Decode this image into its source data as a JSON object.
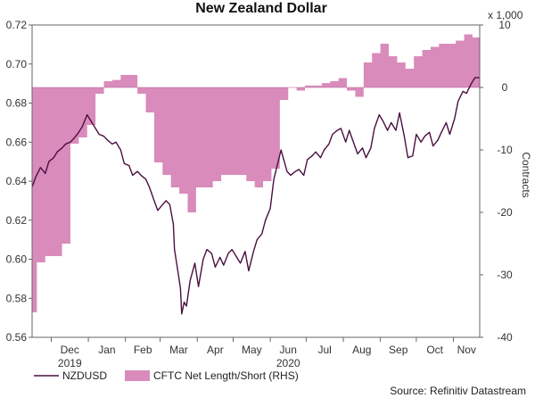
{
  "chart_data": {
    "type": "line",
    "title": "New Zealand Dollar",
    "left_axis": {
      "ticks": [
        "0.56",
        "0.58",
        "0.60",
        "0.62",
        "0.64",
        "0.66",
        "0.68",
        "0.70",
        "0.72"
      ],
      "ylim": [
        0.56,
        0.72
      ]
    },
    "right_axis": {
      "label": "Contracts",
      "unit_note": "x 1,000",
      "ticks": [
        "-40",
        "-30",
        "-20",
        "-10",
        "0",
        "10"
      ],
      "ylim": [
        -40,
        10
      ]
    },
    "x_axis": {
      "month_ticks": [
        "Dec",
        "Jan",
        "Feb",
        "Mar",
        "Apr",
        "May",
        "Jun",
        "Jul",
        "Aug",
        "Sep",
        "Oct",
        "Nov"
      ],
      "year_labels": [
        "2019",
        "2020"
      ],
      "start": "2019-11-15",
      "end": "2020-11-23"
    },
    "series": [
      {
        "name": "NZDUSD",
        "axis": "left",
        "color": "#4a1040",
        "type": "line",
        "points": [
          [
            "2019-11-15",
            0.637
          ],
          [
            "2019-11-18",
            0.642
          ],
          [
            "2019-11-22",
            0.647
          ],
          [
            "2019-11-26",
            0.644
          ],
          [
            "2019-11-29",
            0.65
          ],
          [
            "2019-12-03",
            0.652
          ],
          [
            "2019-12-06",
            0.655
          ],
          [
            "2019-12-10",
            0.657
          ],
          [
            "2019-12-13",
            0.659
          ],
          [
            "2019-12-17",
            0.66
          ],
          [
            "2019-12-20",
            0.662
          ],
          [
            "2019-12-24",
            0.665
          ],
          [
            "2019-12-27",
            0.668
          ],
          [
            "2019-12-31",
            0.674
          ],
          [
            "2020-01-03",
            0.671
          ],
          [
            "2020-01-07",
            0.667
          ],
          [
            "2020-01-10",
            0.664
          ],
          [
            "2020-01-14",
            0.663
          ],
          [
            "2020-01-17",
            0.661
          ],
          [
            "2020-01-21",
            0.659
          ],
          [
            "2020-01-24",
            0.66
          ],
          [
            "2020-01-28",
            0.656
          ],
          [
            "2020-01-31",
            0.649
          ],
          [
            "2020-02-04",
            0.648
          ],
          [
            "2020-02-07",
            0.643
          ],
          [
            "2020-02-11",
            0.645
          ],
          [
            "2020-02-14",
            0.643
          ],
          [
            "2020-02-18",
            0.641
          ],
          [
            "2020-02-21",
            0.637
          ],
          [
            "2020-02-25",
            0.63
          ],
          [
            "2020-02-28",
            0.625
          ],
          [
            "2020-03-03",
            0.628
          ],
          [
            "2020-03-06",
            0.63
          ],
          [
            "2020-03-09",
            0.628
          ],
          [
            "2020-03-12",
            0.618
          ],
          [
            "2020-03-13",
            0.605
          ],
          [
            "2020-03-16",
            0.593
          ],
          [
            "2020-03-18",
            0.585
          ],
          [
            "2020-03-19",
            0.572
          ],
          [
            "2020-03-21",
            0.578
          ],
          [
            "2020-03-23",
            0.576
          ],
          [
            "2020-03-26",
            0.589
          ],
          [
            "2020-03-30",
            0.598
          ],
          [
            "2020-04-02",
            0.586
          ],
          [
            "2020-04-06",
            0.6
          ],
          [
            "2020-04-09",
            0.605
          ],
          [
            "2020-04-13",
            0.603
          ],
          [
            "2020-04-16",
            0.596
          ],
          [
            "2020-04-20",
            0.601
          ],
          [
            "2020-04-23",
            0.597
          ],
          [
            "2020-04-27",
            0.603
          ],
          [
            "2020-04-30",
            0.605
          ],
          [
            "2020-05-04",
            0.601
          ],
          [
            "2020-05-07",
            0.598
          ],
          [
            "2020-05-11",
            0.604
          ],
          [
            "2020-05-14",
            0.594
          ],
          [
            "2020-05-18",
            0.604
          ],
          [
            "2020-05-21",
            0.61
          ],
          [
            "2020-05-25",
            0.613
          ],
          [
            "2020-05-28",
            0.62
          ],
          [
            "2020-06-01",
            0.626
          ],
          [
            "2020-06-04",
            0.641
          ],
          [
            "2020-06-08",
            0.651
          ],
          [
            "2020-06-10",
            0.656
          ],
          [
            "2020-06-15",
            0.645
          ],
          [
            "2020-06-18",
            0.643
          ],
          [
            "2020-06-22",
            0.645
          ],
          [
            "2020-06-25",
            0.646
          ],
          [
            "2020-06-29",
            0.643
          ],
          [
            "2020-07-02",
            0.651
          ],
          [
            "2020-07-06",
            0.653
          ],
          [
            "2020-07-09",
            0.655
          ],
          [
            "2020-07-13",
            0.652
          ],
          [
            "2020-07-16",
            0.656
          ],
          [
            "2020-07-20",
            0.659
          ],
          [
            "2020-07-23",
            0.664
          ],
          [
            "2020-07-27",
            0.666
          ],
          [
            "2020-07-30",
            0.667
          ],
          [
            "2020-08-03",
            0.66
          ],
          [
            "2020-08-06",
            0.666
          ],
          [
            "2020-08-10",
            0.659
          ],
          [
            "2020-08-13",
            0.654
          ],
          [
            "2020-08-17",
            0.657
          ],
          [
            "2020-08-20",
            0.652
          ],
          [
            "2020-08-24",
            0.657
          ],
          [
            "2020-08-27",
            0.667
          ],
          [
            "2020-08-31",
            0.674
          ],
          [
            "2020-09-03",
            0.671
          ],
          [
            "2020-09-07",
            0.666
          ],
          [
            "2020-09-10",
            0.67
          ],
          [
            "2020-09-14",
            0.666
          ],
          [
            "2020-09-17",
            0.675
          ],
          [
            "2020-09-21",
            0.663
          ],
          [
            "2020-09-24",
            0.652
          ],
          [
            "2020-09-28",
            0.653
          ],
          [
            "2020-10-01",
            0.664
          ],
          [
            "2020-10-05",
            0.66
          ],
          [
            "2020-10-08",
            0.663
          ],
          [
            "2020-10-12",
            0.665
          ],
          [
            "2020-10-15",
            0.658
          ],
          [
            "2020-10-19",
            0.661
          ],
          [
            "2020-10-22",
            0.665
          ],
          [
            "2020-10-26",
            0.67
          ],
          [
            "2020-10-29",
            0.664
          ],
          [
            "2020-11-02",
            0.672
          ],
          [
            "2020-11-05",
            0.681
          ],
          [
            "2020-11-09",
            0.686
          ],
          [
            "2020-11-12",
            0.685
          ],
          [
            "2020-11-16",
            0.69
          ],
          [
            "2020-11-19",
            0.693
          ],
          [
            "2020-11-23",
            0.693
          ]
        ]
      },
      {
        "name": "CFTC Net Length/Short (RHS)",
        "axis": "right",
        "color": "#d98bbb",
        "type": "area",
        "points": [
          [
            "2019-11-15",
            -36
          ],
          [
            "2019-11-19",
            -28
          ],
          [
            "2019-11-26",
            -27
          ],
          [
            "2019-12-03",
            -27
          ],
          [
            "2019-12-10",
            -25
          ],
          [
            "2019-12-17",
            -9
          ],
          [
            "2019-12-24",
            -8
          ],
          [
            "2019-12-31",
            -6
          ],
          [
            "2020-01-07",
            -1
          ],
          [
            "2020-01-14",
            1
          ],
          [
            "2020-01-21",
            1.2
          ],
          [
            "2020-01-28",
            2
          ],
          [
            "2020-02-04",
            2
          ],
          [
            "2020-02-11",
            -1
          ],
          [
            "2020-02-18",
            -4
          ],
          [
            "2020-02-25",
            -12
          ],
          [
            "2020-03-03",
            -14
          ],
          [
            "2020-03-10",
            -16
          ],
          [
            "2020-03-17",
            -17
          ],
          [
            "2020-03-24",
            -20
          ],
          [
            "2020-03-31",
            -16
          ],
          [
            "2020-04-07",
            -16
          ],
          [
            "2020-04-14",
            -15
          ],
          [
            "2020-04-21",
            -14
          ],
          [
            "2020-04-28",
            -14
          ],
          [
            "2020-05-05",
            -14
          ],
          [
            "2020-05-12",
            -15
          ],
          [
            "2020-05-19",
            -16
          ],
          [
            "2020-05-26",
            -15
          ],
          [
            "2020-06-02",
            -13
          ],
          [
            "2020-06-09",
            -2
          ],
          [
            "2020-06-16",
            0
          ],
          [
            "2020-06-23",
            -0.5
          ],
          [
            "2020-06-30",
            0.3
          ],
          [
            "2020-07-07",
            0.3
          ],
          [
            "2020-07-14",
            0.7
          ],
          [
            "2020-07-21",
            1
          ],
          [
            "2020-07-28",
            1.5
          ],
          [
            "2020-08-04",
            -0.5
          ],
          [
            "2020-08-11",
            -1.5
          ],
          [
            "2020-08-18",
            4
          ],
          [
            "2020-08-25",
            5.5
          ],
          [
            "2020-09-01",
            7
          ],
          [
            "2020-09-08",
            5
          ],
          [
            "2020-09-15",
            4
          ],
          [
            "2020-09-22",
            3
          ],
          [
            "2020-09-29",
            5
          ],
          [
            "2020-10-06",
            6
          ],
          [
            "2020-10-13",
            6.5
          ],
          [
            "2020-10-20",
            7
          ],
          [
            "2020-10-27",
            7
          ],
          [
            "2020-11-03",
            7.5
          ],
          [
            "2020-11-10",
            8.5
          ],
          [
            "2020-11-17",
            8
          ],
          [
            "2020-11-23",
            7.5
          ]
        ]
      }
    ],
    "legend": {
      "position": "bottom-left"
    },
    "source": "Source: Refinitiv Datastream"
  }
}
